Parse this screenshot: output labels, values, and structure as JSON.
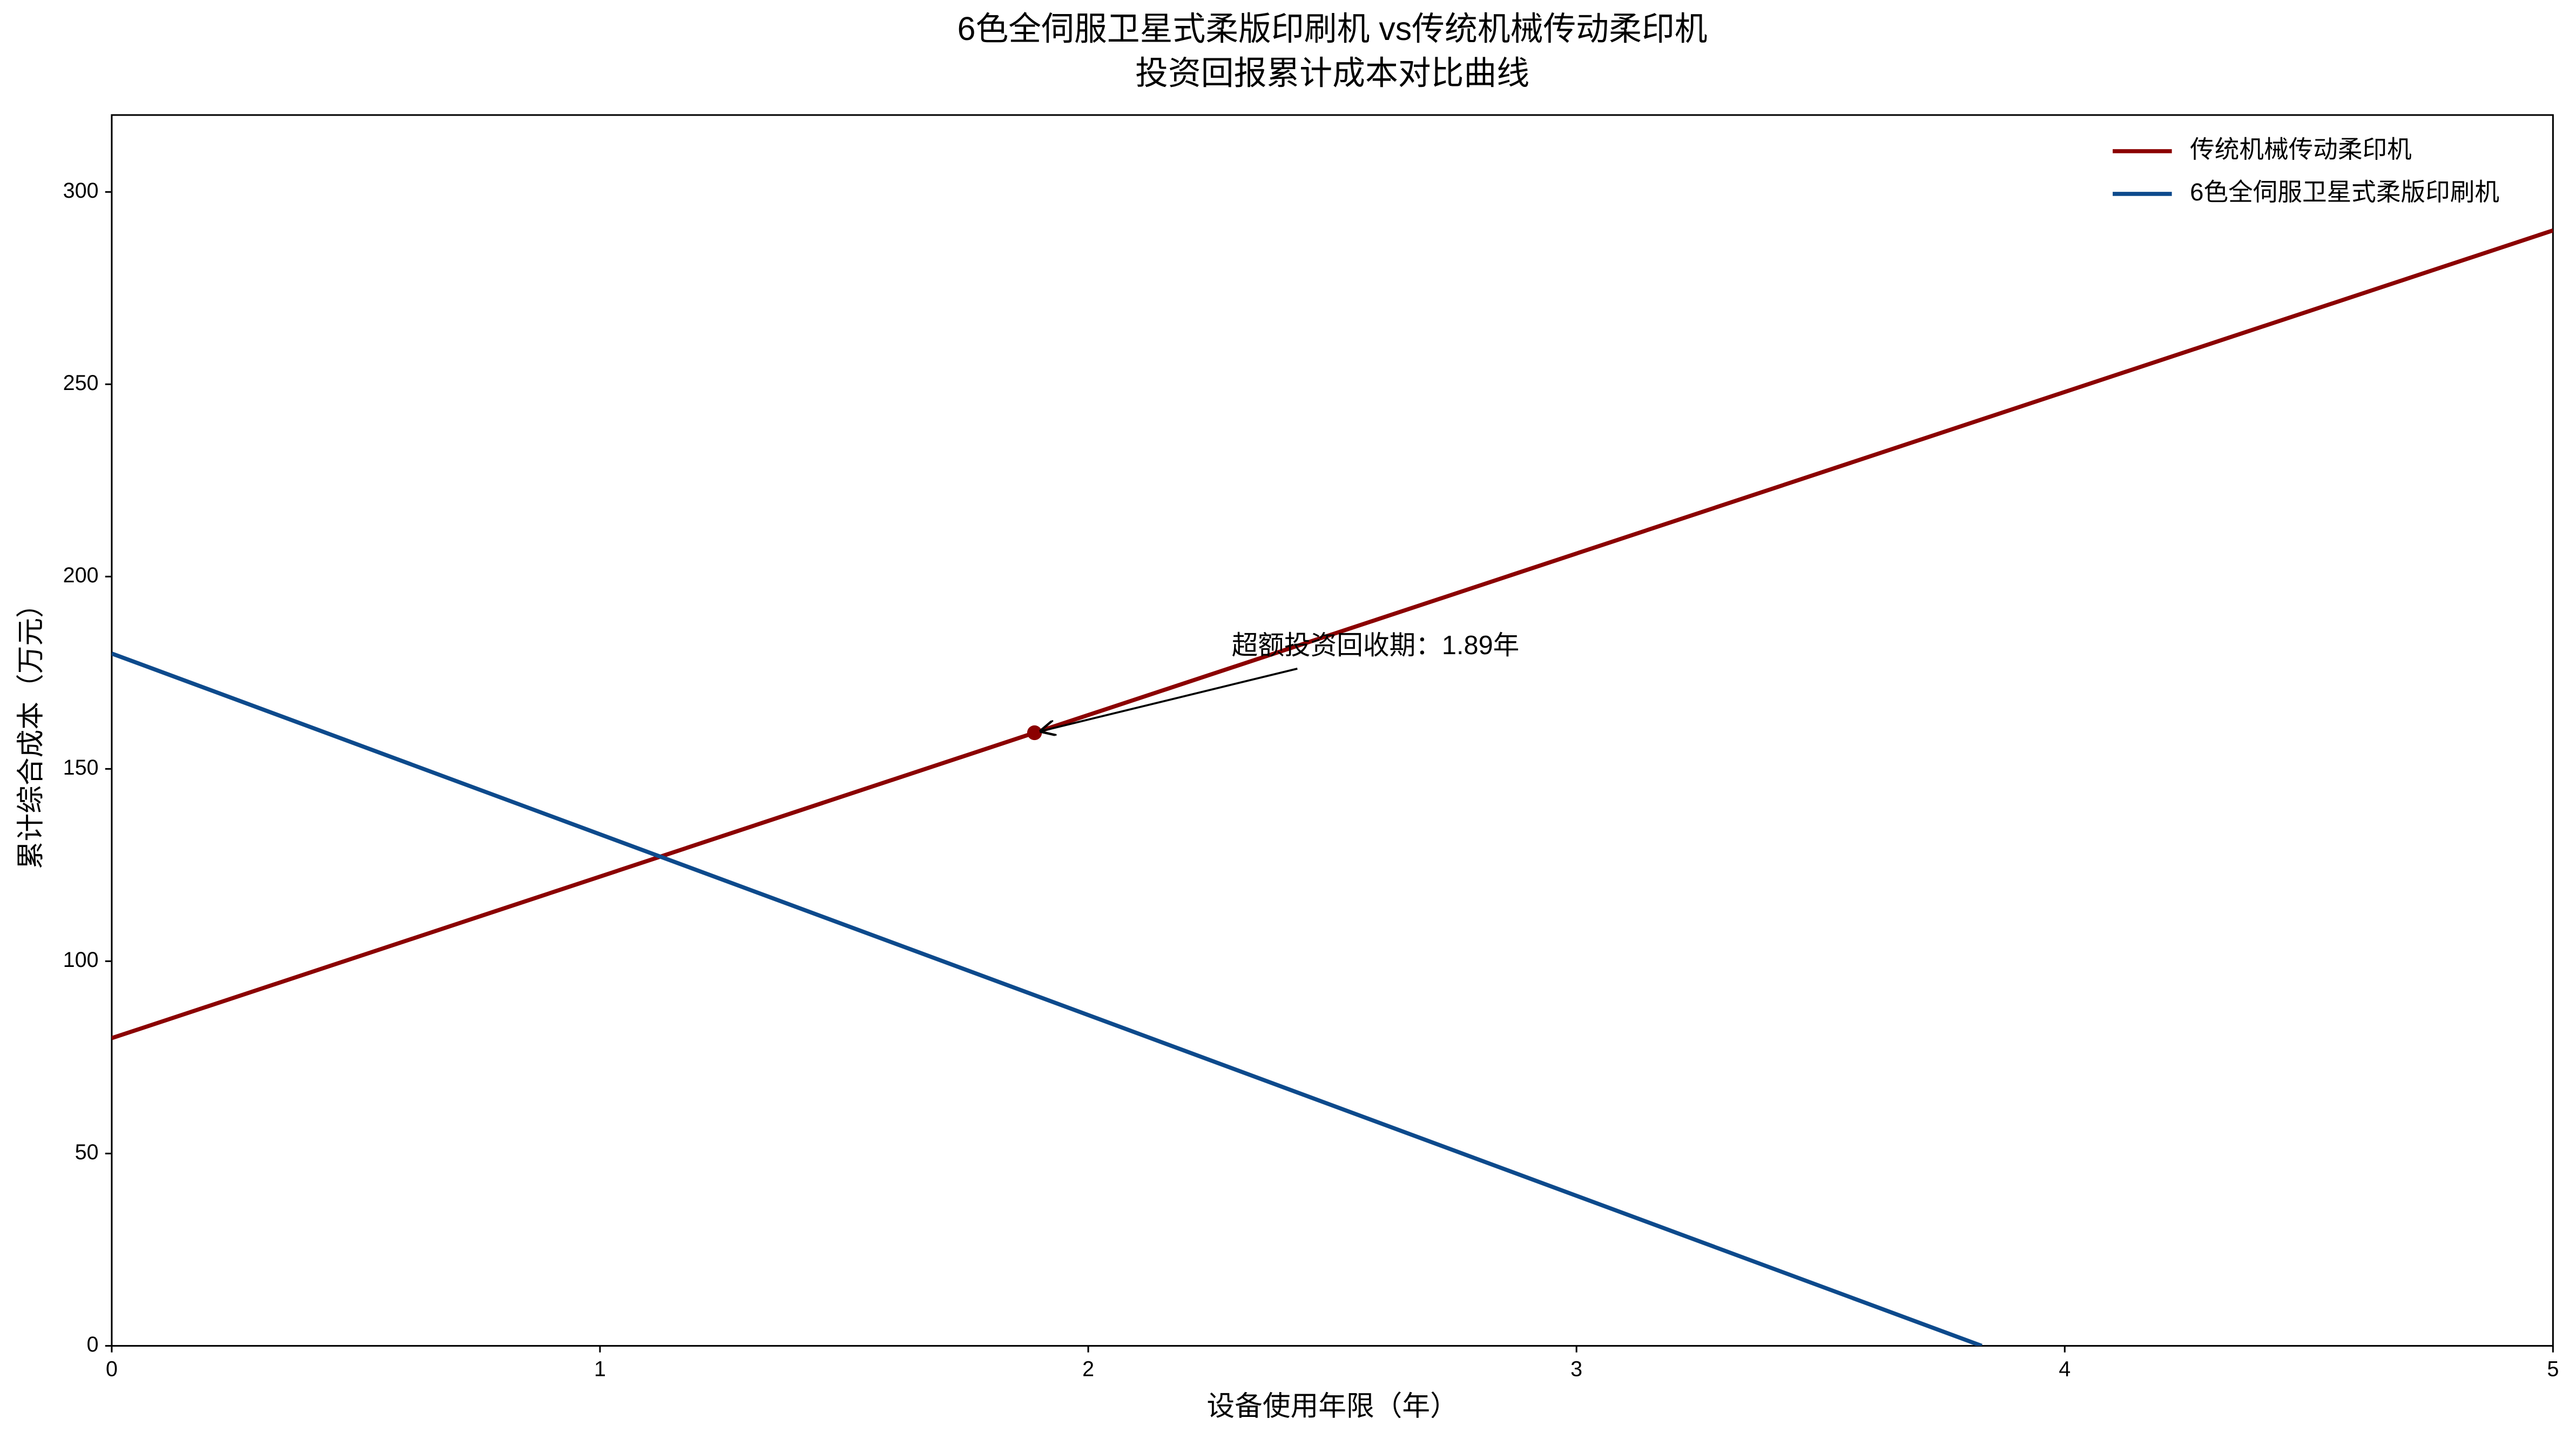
{
  "chart_data": {
    "type": "line",
    "title": [
      "6色全伺服卫星式柔版印刷机 vs传统机械传动柔印机",
      "投资回报累计成本对比曲线"
    ],
    "xlabel": "设备使用年限（年）",
    "ylabel": "累计综合成本（万元）",
    "series": [
      {
        "name": "传统机械传动柔印机",
        "color": "#8b0000",
        "x": [
          0,
          5
        ],
        "values": [
          80,
          290
        ]
      },
      {
        "name": "6色全伺服卫星式柔版印刷机",
        "color": "#0d4a8c",
        "x": [
          0,
          3.83
        ],
        "values": [
          180,
          0
        ]
      }
    ],
    "annotation": {
      "text": "超额投资回收期：1.89年",
      "x": 1.89,
      "y": 159.4,
      "color": "#8b0000"
    },
    "xlim": [
      0,
      5
    ],
    "xticks": [
      0,
      1,
      2,
      3,
      4,
      5
    ],
    "ylim": [
      0,
      320
    ],
    "yticks": [
      0,
      50,
      100,
      150,
      200,
      250,
      300
    ],
    "grid": false,
    "legend": "upper right"
  }
}
